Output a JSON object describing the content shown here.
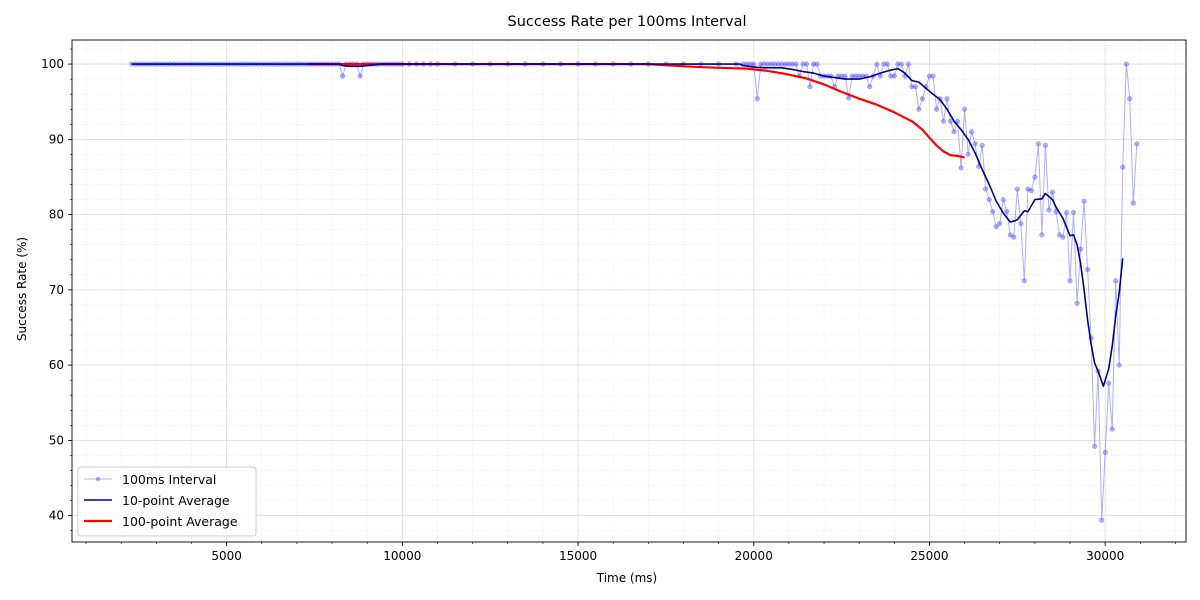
{
  "chart_data": {
    "type": "line",
    "title": "Success Rate per 100ms Interval",
    "xlabel": "Time (ms)",
    "ylabel": "Success Rate (%)",
    "xlim": [
      600,
      32300
    ],
    "ylim": [
      36.5,
      103.2
    ],
    "x_ticks": [
      5000,
      10000,
      15000,
      20000,
      25000,
      30000
    ],
    "y_ticks": [
      40,
      50,
      60,
      70,
      80,
      90,
      100
    ],
    "grid": true,
    "minor_grid": true,
    "legend_position": "lower-left",
    "colors": {
      "interval": "#4d4dff",
      "avg10": "#00008b",
      "avg100": "#ff0000"
    },
    "series": [
      {
        "name": "100ms Interval",
        "style": "line-markers",
        "flat_segments": [
          {
            "start": 2300,
            "end": 8100,
            "step": 100,
            "value": 100
          }
        ],
        "points": [
          [
            8200,
            100
          ],
          [
            8300,
            98.4
          ],
          [
            8400,
            100
          ],
          [
            8500,
            100
          ],
          [
            8600,
            100
          ],
          [
            8700,
            100
          ],
          [
            8800,
            98.4
          ],
          [
            8900,
            100
          ],
          [
            9000,
            100
          ],
          [
            9100,
            100
          ],
          [
            9200,
            100
          ],
          [
            9300,
            100
          ],
          [
            9400,
            100
          ],
          [
            9500,
            100
          ],
          [
            9600,
            100
          ],
          [
            9700,
            100
          ],
          [
            9800,
            100
          ],
          [
            9900,
            100
          ],
          [
            10000,
            100
          ],
          [
            10200,
            100
          ],
          [
            10400,
            100
          ],
          [
            10600,
            100
          ],
          [
            10800,
            100
          ],
          [
            11000,
            100
          ],
          [
            11500,
            100
          ],
          [
            12000,
            100
          ],
          [
            12500,
            100
          ],
          [
            13000,
            100
          ],
          [
            13500,
            100
          ],
          [
            14000,
            100
          ],
          [
            14500,
            100
          ],
          [
            15000,
            100
          ],
          [
            15500,
            100
          ],
          [
            16000,
            100
          ],
          [
            16500,
            100
          ],
          [
            17000,
            100
          ],
          [
            17500,
            100
          ],
          [
            18000,
            100
          ],
          [
            18500,
            100
          ],
          [
            19000,
            100
          ],
          [
            19500,
            100
          ],
          [
            19700,
            100
          ],
          [
            19800,
            100
          ],
          [
            19900,
            100
          ],
          [
            20000,
            100
          ],
          [
            20100,
            95.4
          ],
          [
            20200,
            100
          ],
          [
            20300,
            100
          ],
          [
            20400,
            100
          ],
          [
            20500,
            100
          ],
          [
            20600,
            100
          ],
          [
            20700,
            100
          ],
          [
            20800,
            100
          ],
          [
            20900,
            100
          ],
          [
            21000,
            100
          ],
          [
            21100,
            100
          ],
          [
            21200,
            100
          ],
          [
            21300,
            98.4
          ],
          [
            21400,
            100
          ],
          [
            21500,
            100
          ],
          [
            21600,
            97
          ],
          [
            21700,
            100
          ],
          [
            21800,
            100
          ],
          [
            21900,
            98.4
          ],
          [
            22000,
            98.4
          ],
          [
            22100,
            98.4
          ],
          [
            22200,
            98.4
          ],
          [
            22300,
            97
          ],
          [
            22400,
            98.4
          ],
          [
            22500,
            98.4
          ],
          [
            22600,
            98.4
          ],
          [
            22700,
            95.5
          ],
          [
            22800,
            98.4
          ],
          [
            22900,
            98.4
          ],
          [
            23000,
            98.4
          ],
          [
            23100,
            98.4
          ],
          [
            23200,
            98.4
          ],
          [
            23300,
            97
          ],
          [
            23400,
            98.4
          ],
          [
            23500,
            100
          ],
          [
            23600,
            98.4
          ],
          [
            23700,
            100
          ],
          [
            23800,
            100
          ],
          [
            23900,
            98.4
          ],
          [
            24000,
            98.4
          ],
          [
            24100,
            100
          ],
          [
            24200,
            100
          ],
          [
            24300,
            98.4
          ],
          [
            24400,
            100
          ],
          [
            24500,
            97
          ],
          [
            24600,
            97
          ],
          [
            24700,
            94
          ],
          [
            24800,
            95.4
          ],
          [
            24900,
            97
          ],
          [
            25000,
            98.4
          ],
          [
            25100,
            98.4
          ],
          [
            25200,
            94
          ],
          [
            25300,
            95.4
          ],
          [
            25400,
            92.4
          ],
          [
            25500,
            95.4
          ],
          [
            25600,
            92.4
          ],
          [
            25700,
            91
          ],
          [
            25800,
            92.4
          ],
          [
            25900,
            86.2
          ],
          [
            26000,
            94
          ],
          [
            26100,
            88
          ],
          [
            26200,
            91
          ],
          [
            26300,
            89.4
          ],
          [
            26400,
            86.4
          ],
          [
            26500,
            89.2
          ],
          [
            26600,
            83.4
          ],
          [
            26700,
            82
          ],
          [
            26800,
            80.4
          ],
          [
            26900,
            78.4
          ],
          [
            27000,
            78.8
          ],
          [
            27100,
            82
          ],
          [
            27200,
            80.4
          ],
          [
            27300,
            77.3
          ],
          [
            27400,
            77
          ],
          [
            27500,
            83.4
          ],
          [
            27600,
            78.8
          ],
          [
            27700,
            71.2
          ],
          [
            27800,
            83.4
          ],
          [
            27900,
            83.2
          ],
          [
            28000,
            85
          ],
          [
            28100,
            89.4
          ],
          [
            28200,
            77.3
          ],
          [
            28300,
            89.2
          ],
          [
            28400,
            80.6
          ],
          [
            28500,
            83
          ],
          [
            28600,
            80.4
          ],
          [
            28700,
            77.3
          ],
          [
            28800,
            77
          ],
          [
            28900,
            80.3
          ],
          [
            29000,
            71.2
          ],
          [
            29100,
            80.3
          ],
          [
            29200,
            68.2
          ],
          [
            29300,
            75.4
          ],
          [
            29400,
            81.8
          ],
          [
            29500,
            72.7
          ],
          [
            29600,
            63.6
          ],
          [
            29700,
            49.2
          ],
          [
            29800,
            59.2
          ],
          [
            29900,
            39.4
          ],
          [
            30000,
            48.4
          ],
          [
            30100,
            57.6
          ],
          [
            30200,
            51.5
          ],
          [
            30300,
            71.2
          ],
          [
            30400,
            60
          ],
          [
            30500,
            86.3
          ],
          [
            30600,
            100
          ],
          [
            30700,
            95.4
          ],
          [
            30800,
            81.5
          ],
          [
            30900,
            89.4
          ]
        ]
      },
      {
        "name": "10-point Average",
        "style": "line",
        "points": [
          [
            2300,
            100
          ],
          [
            8200,
            100
          ],
          [
            8300,
            99.8
          ],
          [
            8500,
            99.7
          ],
          [
            8800,
            99.7
          ],
          [
            9000,
            99.8
          ],
          [
            9400,
            100
          ],
          [
            19600,
            100
          ],
          [
            19700,
            99.8
          ],
          [
            20000,
            99.6
          ],
          [
            20300,
            99.5
          ],
          [
            20800,
            99.5
          ],
          [
            21100,
            99.3
          ],
          [
            21400,
            99
          ],
          [
            21700,
            98.8
          ],
          [
            22000,
            98.4
          ],
          [
            22300,
            98.2
          ],
          [
            22600,
            98
          ],
          [
            23000,
            98
          ],
          [
            23300,
            98.3
          ],
          [
            23600,
            98.8
          ],
          [
            23900,
            99.2
          ],
          [
            24100,
            99.4
          ],
          [
            24300,
            98.8
          ],
          [
            24500,
            97.8
          ],
          [
            24700,
            97.6
          ],
          [
            24900,
            96.8
          ],
          [
            25100,
            96
          ],
          [
            25300,
            95.3
          ],
          [
            25500,
            94
          ],
          [
            25700,
            92.4
          ],
          [
            25900,
            91.3
          ],
          [
            26100,
            90
          ],
          [
            26300,
            88.2
          ],
          [
            26500,
            86
          ],
          [
            26700,
            84
          ],
          [
            26900,
            81.8
          ],
          [
            27100,
            80.2
          ],
          [
            27300,
            79
          ],
          [
            27500,
            79.3
          ],
          [
            27700,
            80.5
          ],
          [
            27800,
            80.4
          ],
          [
            28000,
            82
          ],
          [
            28200,
            82.1
          ],
          [
            28300,
            82.8
          ],
          [
            28500,
            82
          ],
          [
            28600,
            81
          ],
          [
            28800,
            79.5
          ],
          [
            29000,
            77.2
          ],
          [
            29100,
            77.3
          ],
          [
            29200,
            76
          ],
          [
            29300,
            73.5
          ],
          [
            29400,
            70
          ],
          [
            29500,
            66
          ],
          [
            29600,
            62.8
          ],
          [
            29700,
            60.3
          ],
          [
            29800,
            59.2
          ],
          [
            29950,
            57.2
          ],
          [
            30100,
            59.5
          ],
          [
            30200,
            62.5
          ],
          [
            30300,
            66.5
          ],
          [
            30400,
            69.6
          ],
          [
            30500,
            74.2
          ]
        ]
      },
      {
        "name": "100-point Average",
        "style": "line",
        "points": [
          [
            7300,
            100
          ],
          [
            17000,
            100
          ],
          [
            18000,
            99.7
          ],
          [
            19000,
            99.5
          ],
          [
            19800,
            99.4
          ],
          [
            20400,
            99.1
          ],
          [
            20900,
            98.7
          ],
          [
            21500,
            98.1
          ],
          [
            22000,
            97.3
          ],
          [
            22500,
            96.3
          ],
          [
            23000,
            95.4
          ],
          [
            23500,
            94.6
          ],
          [
            24000,
            93.6
          ],
          [
            24500,
            92.4
          ],
          [
            24800,
            91.3
          ],
          [
            25000,
            90.2
          ],
          [
            25200,
            89.2
          ],
          [
            25400,
            88.4
          ],
          [
            25600,
            87.9
          ],
          [
            25800,
            87.8
          ],
          [
            26000,
            87.6
          ]
        ]
      }
    ]
  }
}
